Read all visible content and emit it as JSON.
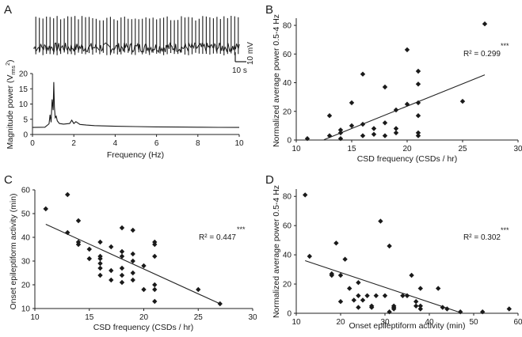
{
  "figure": {
    "panels": {
      "A": {
        "letter": "A"
      },
      "B": {
        "letter": "B"
      },
      "C": {
        "letter": "C"
      },
      "D": {
        "letter": "D"
      }
    }
  },
  "chart_data": [
    {
      "panel": "A",
      "type": "line",
      "subplots": [
        {
          "name": "raw-trace",
          "description_role": "voltage trace",
          "scale_bar": {
            "voltage_label": "10 mV",
            "time_label": "10 s"
          },
          "spike_count": 58
        },
        {
          "name": "power-spectrum",
          "xlabel": "Frequency (Hz)",
          "ylabel_main": "Magnitude power (V",
          "ylabel_sub": "rms",
          "ylabel_sup": "2",
          "ylabel_close": ")",
          "xlim": [
            0,
            10
          ],
          "ylim": [
            0,
            20
          ],
          "xticks": [
            "0",
            "2",
            "4",
            "6",
            "8",
            "10"
          ],
          "yticks": [
            "0",
            "5",
            "10",
            "15",
            "20"
          ],
          "baseline": 2.3,
          "x": [
            0,
            0.6,
            0.8,
            0.85,
            0.9,
            0.95,
            1.0,
            1.03,
            1.06,
            1.1,
            1.15,
            1.2,
            1.3,
            1.5,
            1.8,
            1.9,
            2.0,
            2.1,
            2.3,
            2.6,
            3.0,
            3.5,
            4.0,
            5.0,
            6.0,
            7.0,
            8.0,
            9.0,
            10.0
          ],
          "y": [
            2.3,
            2.4,
            3.5,
            6.5,
            4.0,
            11.5,
            8.0,
            17.2,
            9.0,
            5.5,
            6.0,
            4.5,
            3.6,
            3.4,
            3.6,
            4.7,
            3.6,
            4.2,
            3.3,
            3.1,
            2.9,
            2.8,
            2.7,
            2.6,
            2.5,
            2.45,
            2.4,
            2.35,
            2.3
          ]
        }
      ]
    },
    {
      "panel": "B",
      "type": "scatter",
      "xlabel": "CSD frequency (CSDs / hr)",
      "ylabel": "Normalized average power 0.5-4 Hz",
      "xlim": [
        10,
        30
      ],
      "ylim": [
        0,
        85
      ],
      "xticks": [
        "10",
        "15",
        "20",
        "25",
        "30"
      ],
      "yticks": [
        "0",
        "20",
        "40",
        "60",
        "80"
      ],
      "r2": "R² = 0.299",
      "significance": "***",
      "trend": {
        "x": [
          12.5,
          27
        ],
        "y": [
          0.2,
          45.5
        ]
      },
      "points": [
        [
          11,
          1
        ],
        [
          13,
          3
        ],
        [
          13,
          17
        ],
        [
          14,
          1
        ],
        [
          14,
          5
        ],
        [
          14,
          7
        ],
        [
          15,
          10
        ],
        [
          15,
          26
        ],
        [
          16,
          3
        ],
        [
          16,
          11
        ],
        [
          16,
          46
        ],
        [
          17,
          4
        ],
        [
          17,
          8
        ],
        [
          18,
          3
        ],
        [
          18,
          12
        ],
        [
          18,
          37
        ],
        [
          19,
          5
        ],
        [
          19,
          8
        ],
        [
          19,
          21
        ],
        [
          20,
          25
        ],
        [
          20,
          63
        ],
        [
          21,
          3
        ],
        [
          21,
          5
        ],
        [
          21,
          17
        ],
        [
          21,
          26
        ],
        [
          21,
          39
        ],
        [
          21,
          48
        ],
        [
          25,
          27
        ],
        [
          27,
          81
        ]
      ]
    },
    {
      "panel": "C",
      "type": "scatter",
      "xlabel": "CSD frequency (CSDs / hr)",
      "ylabel": "Onset epileptiform activity (min)",
      "xlim": [
        10,
        30
      ],
      "ylim": [
        10,
        60
      ],
      "xticks": [
        "10",
        "15",
        "20",
        "25",
        "30"
      ],
      "yticks": [
        "10",
        "20",
        "30",
        "40",
        "50",
        "60"
      ],
      "r2": "R² = 0.447",
      "significance": "***",
      "trend": {
        "x": [
          11,
          27
        ],
        "y": [
          45.5,
          12
        ]
      },
      "points": [
        [
          11,
          52
        ],
        [
          13,
          42
        ],
        [
          13,
          58
        ],
        [
          14,
          37
        ],
        [
          14,
          38
        ],
        [
          14,
          47
        ],
        [
          15,
          35
        ],
        [
          15,
          31
        ],
        [
          16,
          24
        ],
        [
          16,
          27
        ],
        [
          16,
          29
        ],
        [
          16,
          31
        ],
        [
          16,
          32
        ],
        [
          16,
          38
        ],
        [
          17,
          22
        ],
        [
          17,
          26
        ],
        [
          17,
          36
        ],
        [
          18,
          21
        ],
        [
          18,
          24
        ],
        [
          18,
          27
        ],
        [
          18,
          32
        ],
        [
          18,
          34
        ],
        [
          18,
          44
        ],
        [
          19,
          22
        ],
        [
          19,
          25
        ],
        [
          19,
          30
        ],
        [
          19,
          33
        ],
        [
          19,
          43
        ],
        [
          20,
          18
        ],
        [
          20,
          28
        ],
        [
          21,
          13
        ],
        [
          21,
          18
        ],
        [
          21,
          20
        ],
        [
          21,
          32
        ],
        [
          21,
          37
        ],
        [
          21,
          38
        ],
        [
          25,
          18
        ],
        [
          27,
          12
        ]
      ]
    },
    {
      "panel": "D",
      "type": "scatter",
      "xlabel": "Onset epileptiform activity (min)",
      "ylabel": "Normalized average power 0.5-4 Hz",
      "xlim": [
        10,
        60
      ],
      "ylim": [
        0,
        85
      ],
      "xticks": [
        "10",
        "20",
        "30",
        "40",
        "50",
        "60"
      ],
      "yticks": [
        "0",
        "20",
        "40",
        "60",
        "80"
      ],
      "r2": "R² = 0.302",
      "significance": "***",
      "trend": {
        "x": [
          12,
          47
        ],
        "y": [
          36,
          0.5
        ]
      },
      "points": [
        [
          12,
          81
        ],
        [
          13,
          39
        ],
        [
          18,
          26
        ],
        [
          18,
          27
        ],
        [
          19,
          48
        ],
        [
          20,
          8
        ],
        [
          20,
          26
        ],
        [
          21,
          37
        ],
        [
          22,
          17
        ],
        [
          23,
          9
        ],
        [
          24,
          4
        ],
        [
          24,
          12
        ],
        [
          24,
          21
        ],
        [
          25,
          9
        ],
        [
          26,
          12
        ],
        [
          27,
          4
        ],
        [
          27,
          5
        ],
        [
          28,
          12
        ],
        [
          29,
          63
        ],
        [
          30,
          12
        ],
        [
          31,
          1
        ],
        [
          31,
          46
        ],
        [
          32,
          3
        ],
        [
          32,
          4
        ],
        [
          32,
          5
        ],
        [
          34,
          12
        ],
        [
          35,
          12
        ],
        [
          36,
          26
        ],
        [
          37,
          5
        ],
        [
          37,
          8
        ],
        [
          38,
          3
        ],
        [
          38,
          5
        ],
        [
          38,
          17
        ],
        [
          42,
          17
        ],
        [
          43,
          4
        ],
        [
          44,
          3
        ],
        [
          47,
          1
        ],
        [
          52,
          1
        ],
        [
          58,
          3
        ]
      ]
    }
  ]
}
